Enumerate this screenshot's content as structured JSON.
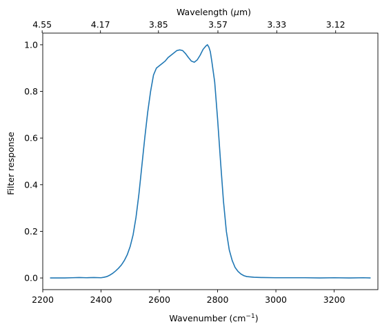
{
  "chart_data": {
    "type": "line",
    "xlabel": "Wavenumber (cm",
    "xlabel_sup": "−1",
    "xlabel_end": ")",
    "ylabel": "Filter response",
    "top_xlabel": "Wavelength (",
    "top_xlabel_mu": "μ",
    "top_xlabel_end": "m)",
    "xlim": [
      2200,
      3350
    ],
    "ylim": [
      -0.05,
      1.05
    ],
    "x_ticks": [
      2200,
      2400,
      2600,
      2800,
      3000,
      3200
    ],
    "x_tick_labels": [
      "2200",
      "2400",
      "2600",
      "2800",
      "3000",
      "3200"
    ],
    "y_ticks": [
      0.0,
      0.2,
      0.4,
      0.6,
      0.8,
      1.0
    ],
    "y_tick_labels": [
      "0.0",
      "0.2",
      "0.4",
      "0.6",
      "0.8",
      "1.0"
    ],
    "top_ticks": [
      2198,
      2398,
      2597,
      2801,
      3003,
      3205
    ],
    "top_tick_labels": [
      "4.55",
      "4.17",
      "3.85",
      "3.57",
      "3.33",
      "3.12"
    ],
    "grid": false,
    "line_color": "#1f77b4",
    "series": [
      {
        "x": [
          2225,
          2250,
          2275,
          2300,
          2325,
          2350,
          2375,
          2400,
          2410,
          2420,
          2430,
          2440,
          2450,
          2460,
          2470,
          2480,
          2490,
          2500,
          2510,
          2520,
          2530,
          2540,
          2550,
          2560,
          2570,
          2580,
          2590,
          2600,
          2610,
          2620,
          2630,
          2640,
          2650,
          2660,
          2670,
          2680,
          2690,
          2700,
          2710,
          2720,
          2730,
          2740,
          2750,
          2760,
          2765,
          2770,
          2775,
          2780,
          2790,
          2800,
          2810,
          2820,
          2830,
          2840,
          2850,
          2860,
          2870,
          2880,
          2890,
          2900,
          2925,
          2950,
          3000,
          3050,
          3100,
          3150,
          3200,
          3250,
          3300,
          3325
        ],
        "y": [
          0.0,
          0.0,
          0.0,
          0.001,
          0.002,
          0.001,
          0.002,
          0.001,
          0.003,
          0.006,
          0.012,
          0.02,
          0.03,
          0.042,
          0.056,
          0.075,
          0.1,
          0.135,
          0.185,
          0.26,
          0.36,
          0.48,
          0.6,
          0.71,
          0.8,
          0.87,
          0.9,
          0.91,
          0.92,
          0.93,
          0.945,
          0.955,
          0.965,
          0.975,
          0.978,
          0.975,
          0.962,
          0.945,
          0.93,
          0.925,
          0.935,
          0.955,
          0.98,
          0.995,
          1.0,
          0.99,
          0.97,
          0.93,
          0.84,
          0.68,
          0.5,
          0.33,
          0.2,
          0.12,
          0.075,
          0.045,
          0.028,
          0.017,
          0.01,
          0.006,
          0.003,
          0.002,
          0.001,
          0.001,
          0.001,
          0.0,
          0.001,
          0.0,
          0.001,
          0.0
        ]
      }
    ]
  }
}
